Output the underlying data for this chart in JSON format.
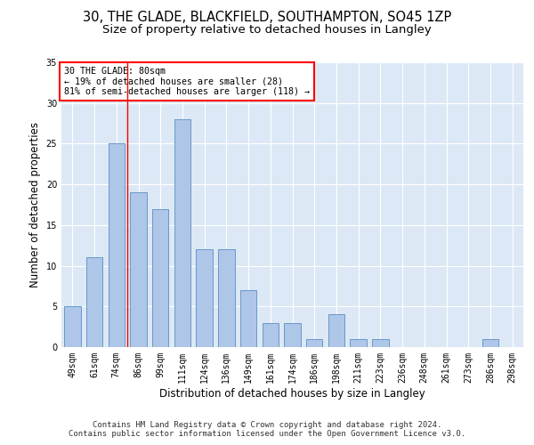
{
  "title_line1": "30, THE GLADE, BLACKFIELD, SOUTHAMPTON, SO45 1ZP",
  "title_line2": "Size of property relative to detached houses in Langley",
  "xlabel": "Distribution of detached houses by size in Langley",
  "ylabel": "Number of detached properties",
  "categories": [
    "49sqm",
    "61sqm",
    "74sqm",
    "86sqm",
    "99sqm",
    "111sqm",
    "124sqm",
    "136sqm",
    "149sqm",
    "161sqm",
    "174sqm",
    "186sqm",
    "198sqm",
    "211sqm",
    "223sqm",
    "236sqm",
    "248sqm",
    "261sqm",
    "273sqm",
    "286sqm",
    "298sqm"
  ],
  "values": [
    5,
    11,
    25,
    19,
    17,
    28,
    12,
    12,
    7,
    3,
    3,
    1,
    4,
    1,
    1,
    0,
    0,
    0,
    0,
    1,
    0
  ],
  "bar_color": "#aec6e8",
  "bar_edge_color": "#5a8fc2",
  "grid_color": "#d0d8e8",
  "background_color": "#dce8f5",
  "annotation_box_text": "30 THE GLADE: 80sqm\n← 19% of detached houses are smaller (28)\n81% of semi-detached houses are larger (118) →",
  "annotation_box_color": "white",
  "annotation_box_edge_color": "red",
  "ref_line_color": "red",
  "ylim": [
    0,
    35
  ],
  "yticks": [
    0,
    5,
    10,
    15,
    20,
    25,
    30,
    35
  ],
  "footer_line1": "Contains HM Land Registry data © Crown copyright and database right 2024.",
  "footer_line2": "Contains public sector information licensed under the Open Government Licence v3.0.",
  "title_fontsize": 10.5,
  "subtitle_fontsize": 9.5,
  "tick_fontsize": 7,
  "label_fontsize": 8.5,
  "footer_fontsize": 6.5,
  "bar_width": 0.75
}
